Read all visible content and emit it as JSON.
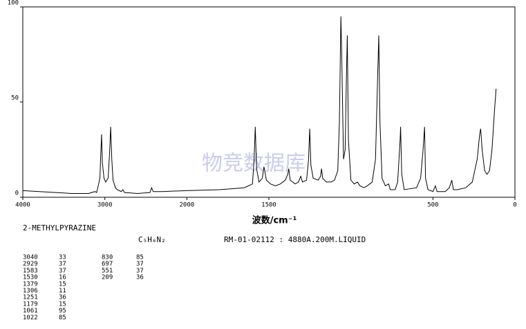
{
  "chart_data": {
    "type": "line",
    "x_label": "波数/cm⁻¹",
    "watermark": "物竞数据库",
    "compound": "2-METHYLPYRAZINE",
    "formula": "C₅H₆N₂",
    "reference": "RM-01-02112 : 4880A.200M.LIQUID",
    "xlim": [
      4000,
      0
    ],
    "x_scale_break": 2000,
    "x_scale_factor": 2,
    "xticks": [
      4000,
      3000,
      2000,
      1500,
      500,
      0
    ],
    "ylim": [
      0,
      100
    ],
    "yticks": [
      0,
      50,
      100
    ],
    "color": "#000000",
    "x": [
      4000,
      3800,
      3600,
      3400,
      3200,
      3120,
      3100,
      3080,
      3060,
      3050,
      3040,
      3030,
      3010,
      2990,
      2960,
      2940,
      2929,
      2915,
      2900,
      2870,
      2850,
      2800,
      2780,
      2760,
      2600,
      2450,
      2430,
      2410,
      2300,
      2000,
      1800,
      1650,
      1600,
      1590,
      1583,
      1575,
      1560,
      1540,
      1530,
      1515,
      1490,
      1460,
      1430,
      1400,
      1385,
      1379,
      1370,
      1340,
      1320,
      1306,
      1295,
      1270,
      1258,
      1251,
      1244,
      1230,
      1200,
      1185,
      1179,
      1172,
      1150,
      1120,
      1100,
      1080,
      1070,
      1061,
      1056,
      1045,
      1035,
      1028,
      1022,
      1015,
      1000,
      980,
      960,
      945,
      920,
      900,
      870,
      850,
      838,
      830,
      823,
      810,
      790,
      770,
      760,
      730,
      715,
      700,
      697,
      690,
      675,
      600,
      575,
      560,
      551,
      545,
      530,
      500,
      485,
      475,
      450,
      425,
      400,
      385,
      375,
      350,
      300,
      260,
      230,
      215,
      209,
      200,
      185,
      170,
      155,
      140,
      125,
      115
    ],
    "values": [
      3.5,
      3,
      2.5,
      2,
      2,
      3,
      2.5,
      6,
      10,
      22,
      33,
      18,
      10,
      8,
      10,
      25,
      37,
      20,
      9,
      5,
      4,
      3,
      4,
      2.5,
      2,
      2.5,
      5,
      3,
      3,
      3.5,
      4,
      5,
      7,
      20,
      37,
      15,
      8,
      10,
      16,
      9,
      7,
      6,
      7,
      9,
      12,
      15,
      9,
      7,
      8,
      11,
      8,
      9,
      20,
      36,
      17,
      10,
      9,
      11,
      15,
      10,
      8,
      8,
      9,
      14,
      40,
      95,
      75,
      20,
      25,
      60,
      85,
      30,
      9,
      7,
      8,
      6,
      5,
      6,
      8,
      20,
      60,
      85,
      40,
      10,
      6,
      7,
      4,
      4,
      8,
      30,
      37,
      12,
      4,
      5,
      10,
      25,
      37,
      10,
      4,
      3,
      6,
      3,
      3,
      3,
      5,
      9,
      4,
      4,
      5,
      8,
      20,
      33,
      36,
      25,
      14,
      12,
      14,
      25,
      45,
      57
    ],
    "peaks": [
      [
        [
          3040,
          33
        ],
        [
          2929,
          37
        ],
        [
          1583,
          37
        ],
        [
          1530,
          16
        ],
        [
          1379,
          15
        ],
        [
          1306,
          11
        ],
        [
          1251,
          36
        ],
        [
          1179,
          15
        ],
        [
          1061,
          95
        ],
        [
          1022,
          85
        ]
      ],
      [
        [
          830,
          85
        ],
        [
          697,
          37
        ],
        [
          551,
          37
        ],
        [
          209,
          36
        ]
      ]
    ]
  }
}
